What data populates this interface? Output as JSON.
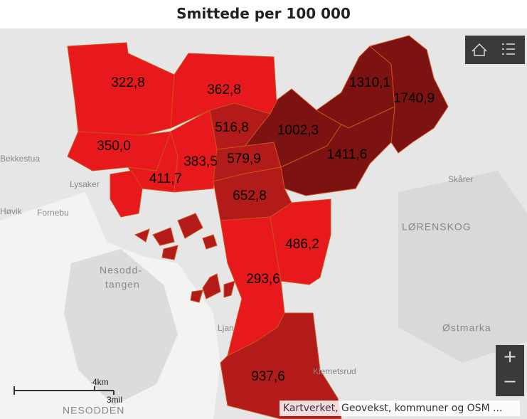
{
  "title": "Smittede per 100 000",
  "districts": [
    "322,8",
    "362,8",
    "350,0",
    "411,7",
    "383,5",
    "516,8",
    "579,9",
    "1002,3",
    "1310,1",
    "1740,9",
    "1411,6",
    "652,8",
    "486,2",
    "293,6",
    "937,6"
  ],
  "places": [
    "Bekkestua",
    "Lysaker",
    "Høvik",
    "Fornebu",
    "Nesodd-",
    "tangen",
    "Skårer",
    "LØRENSKOG",
    "Østmarka",
    "Ljan",
    "Klemetsrud",
    "NESODDEN"
  ],
  "scale": [
    "4km",
    "3mil"
  ],
  "controls": [
    "+",
    "−"
  ],
  "attribution": "Kartverket, Geovekst, kommuner og OSM ..."
}
